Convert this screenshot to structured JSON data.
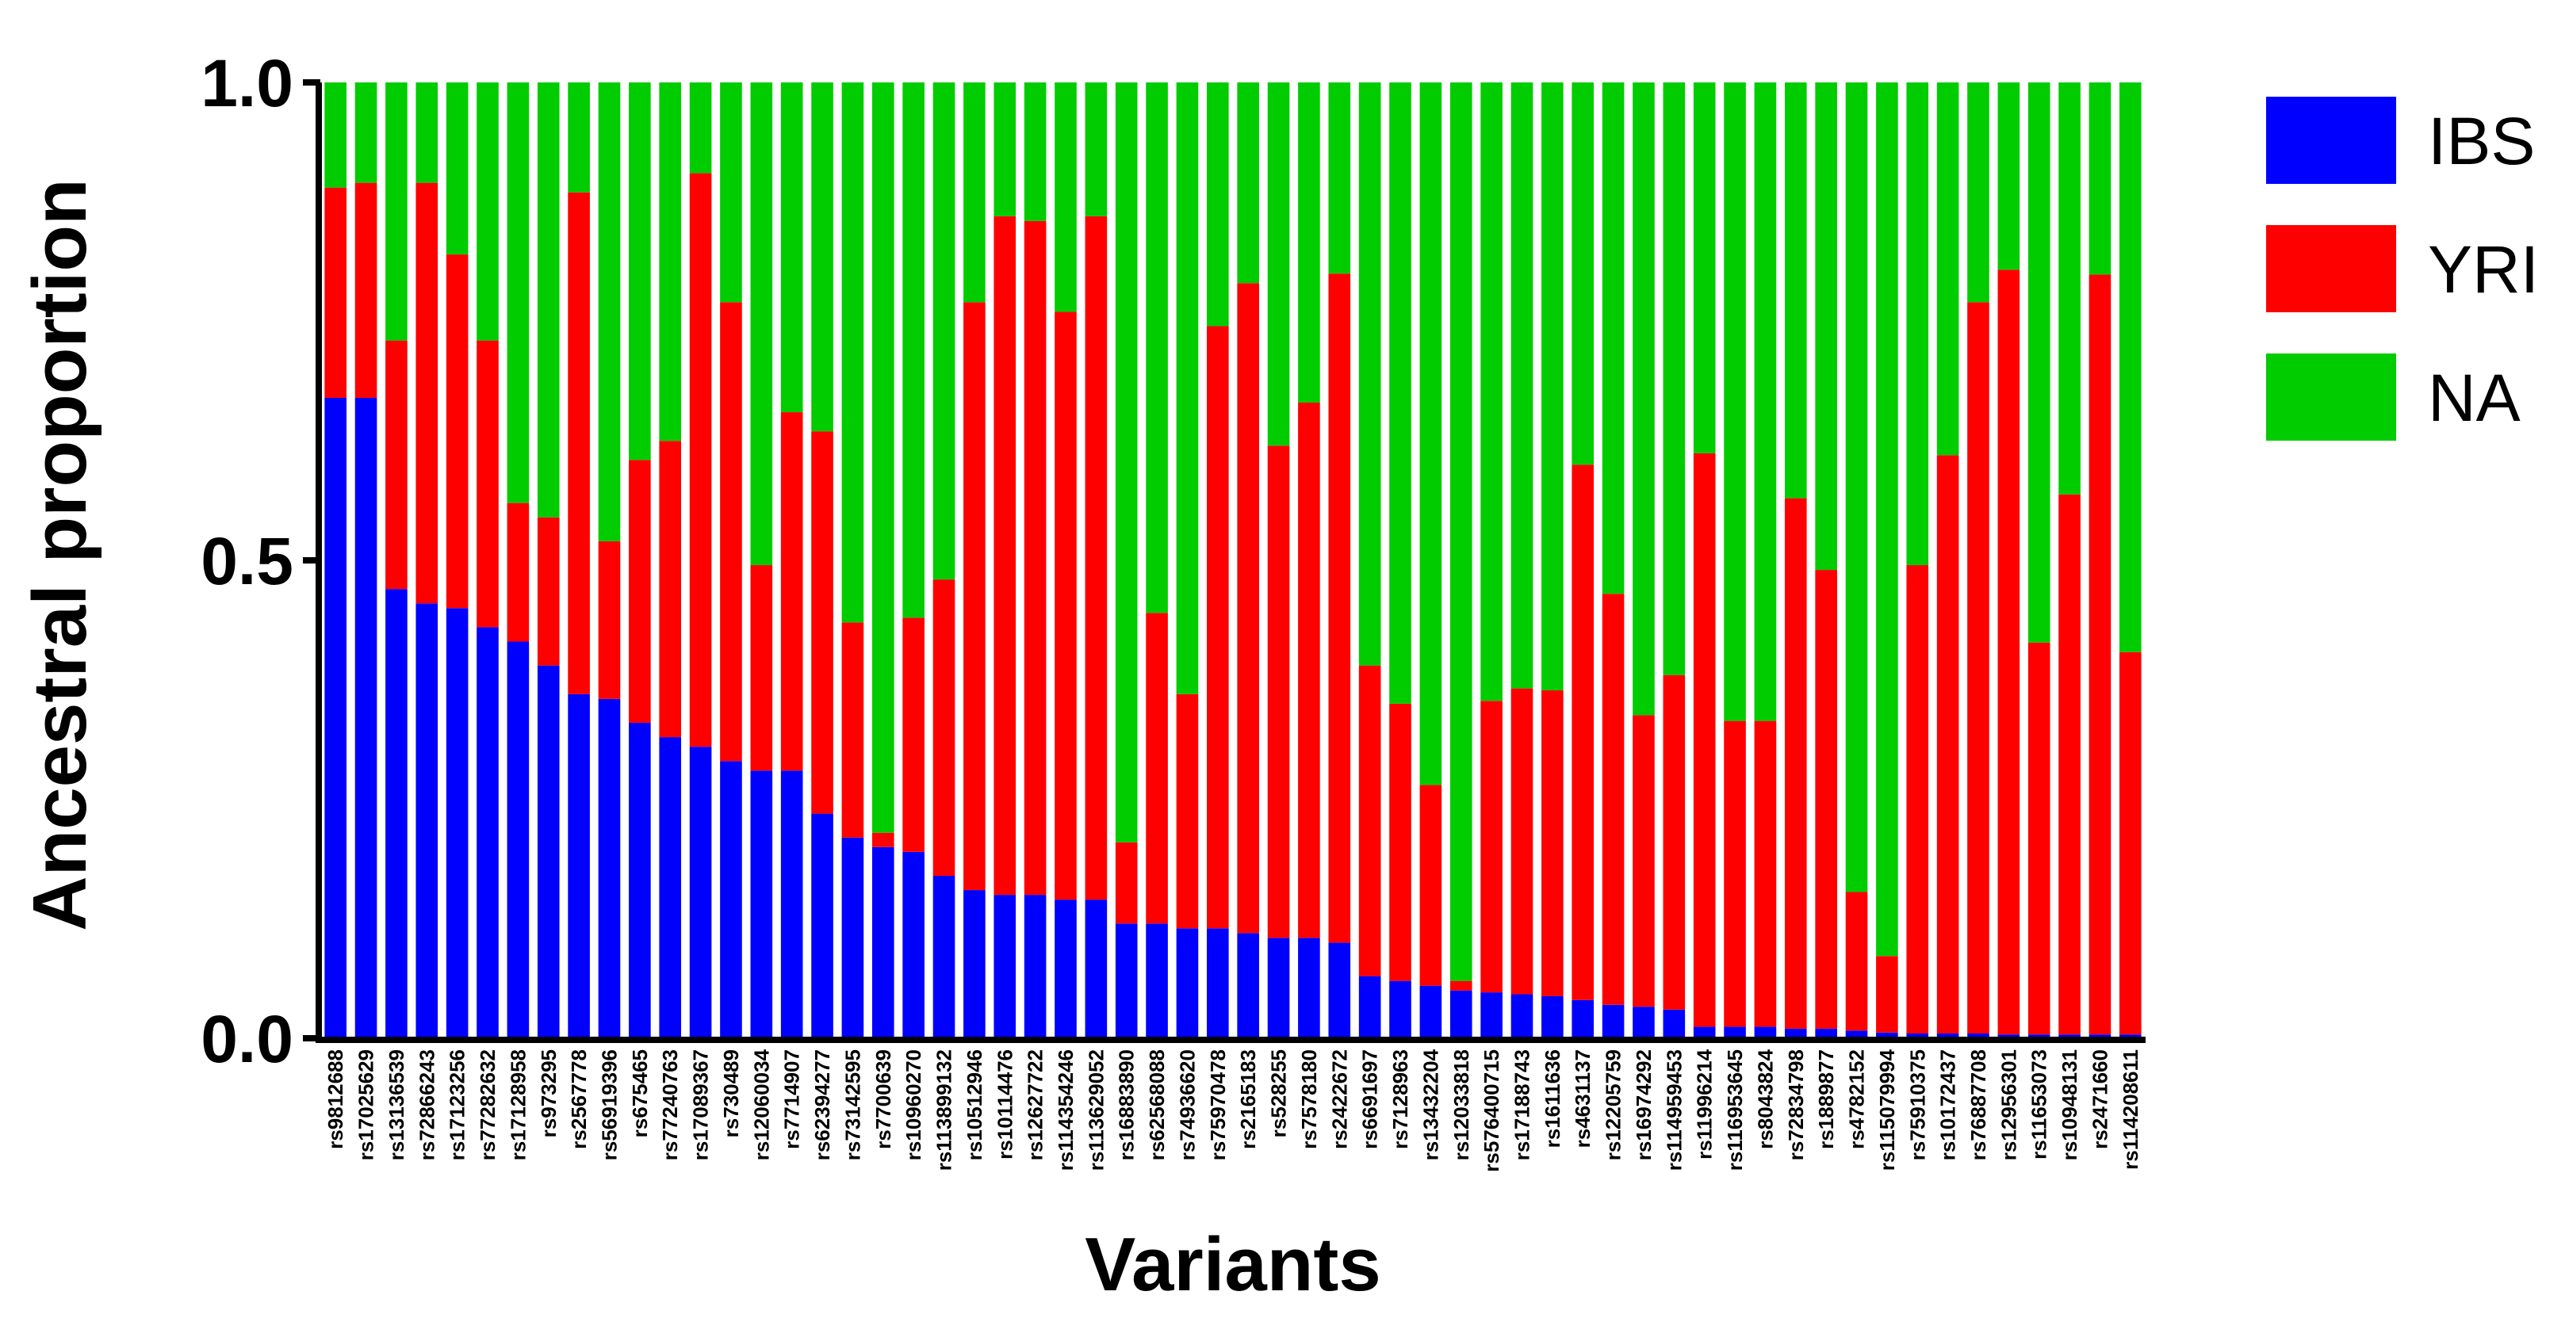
{
  "chart_data": {
    "type": "bar",
    "stacked": true,
    "xlabel": "Variants",
    "ylabel": "Ancestral proportion",
    "ylim": [
      0,
      1
    ],
    "yticks": [
      "0.0",
      "0.5",
      "1.0"
    ],
    "grid": false,
    "legend_position": "right",
    "categories": [
      "rs9812688",
      "rs17025629",
      "rs13136539",
      "rs72866243",
      "rs17123256",
      "rs77282632",
      "rs17128958",
      "rs973295",
      "rs2567778",
      "rs56919396",
      "rs675465",
      "rs77240763",
      "rs17089367",
      "rs730489",
      "rs12060034",
      "rs7714907",
      "rs62394277",
      "rs73142595",
      "rs7700639",
      "rs10960270",
      "rs113899132",
      "rs10512946",
      "rs10114476",
      "rs12627722",
      "rs114354246",
      "rs113629052",
      "rs16883890",
      "rs62568088",
      "rs74936620",
      "rs75970478",
      "rs2165183",
      "rs528255",
      "rs7578180",
      "rs2422672",
      "rs6691697",
      "rs7128963",
      "rs13432204",
      "rs12033818",
      "rs576400715",
      "rs17188743",
      "rs1611636",
      "rs4631137",
      "rs12205759",
      "rs16974292",
      "rs114959453",
      "rs11996214",
      "rs116953645",
      "rs8043824",
      "rs72834798",
      "rs1889877",
      "rs4782152",
      "rs115079994",
      "rs75910375",
      "rs10172437",
      "rs76887708",
      "rs12956301",
      "rs11653073",
      "rs10948131",
      "rs2471660",
      "rs114208611"
    ],
    "series": [
      {
        "name": "IBS",
        "color": "#0000ff",
        "values": [
          0.67,
          0.67,
          0.47,
          0.455,
          0.45,
          0.43,
          0.415,
          0.39,
          0.36,
          0.355,
          0.33,
          0.315,
          0.305,
          0.29,
          0.28,
          0.28,
          0.235,
          0.21,
          0.2,
          0.195,
          0.17,
          0.155,
          0.15,
          0.15,
          0.145,
          0.145,
          0.12,
          0.12,
          0.115,
          0.115,
          0.11,
          0.105,
          0.105,
          0.1,
          0.065,
          0.06,
          0.055,
          0.05,
          0.048,
          0.046,
          0.044,
          0.04,
          0.035,
          0.033,
          0.03,
          0.012,
          0.012,
          0.012,
          0.01,
          0.01,
          0.008,
          0.006,
          0.005,
          0.005,
          0.005,
          0.004,
          0.004,
          0.004,
          0.004,
          0.004
        ]
      },
      {
        "name": "YRI",
        "color": "#ff0000",
        "values": [
          0.22,
          0.225,
          0.26,
          0.44,
          0.37,
          0.3,
          0.145,
          0.155,
          0.525,
          0.165,
          0.275,
          0.31,
          0.6,
          0.48,
          0.215,
          0.375,
          0.4,
          0.225,
          0.015,
          0.245,
          0.31,
          0.615,
          0.71,
          0.705,
          0.615,
          0.715,
          0.085,
          0.325,
          0.245,
          0.63,
          0.68,
          0.515,
          0.56,
          0.7,
          0.325,
          0.29,
          0.21,
          0.01,
          0.305,
          0.32,
          0.32,
          0.56,
          0.43,
          0.305,
          0.35,
          0.6,
          0.32,
          0.32,
          0.555,
          0.48,
          0.145,
          0.08,
          0.49,
          0.605,
          0.765,
          0.8,
          0.41,
          0.565,
          0.795,
          0.4
        ]
      },
      {
        "name": "NA",
        "color": "#00cc00",
        "values": [
          0.11,
          0.105,
          0.27,
          0.105,
          0.18,
          0.27,
          0.44,
          0.455,
          0.115,
          0.48,
          0.395,
          0.375,
          0.095,
          0.23,
          0.505,
          0.345,
          0.365,
          0.565,
          0.785,
          0.56,
          0.52,
          0.23,
          0.14,
          0.145,
          0.24,
          0.14,
          0.795,
          0.555,
          0.64,
          0.255,
          0.21,
          0.38,
          0.335,
          0.2,
          0.61,
          0.65,
          0.735,
          0.94,
          0.647,
          0.634,
          0.636,
          0.4,
          0.535,
          0.662,
          0.62,
          0.388,
          0.668,
          0.668,
          0.435,
          0.51,
          0.847,
          0.914,
          0.505,
          0.39,
          0.23,
          0.196,
          0.586,
          0.431,
          0.201,
          0.596
        ]
      }
    ]
  }
}
